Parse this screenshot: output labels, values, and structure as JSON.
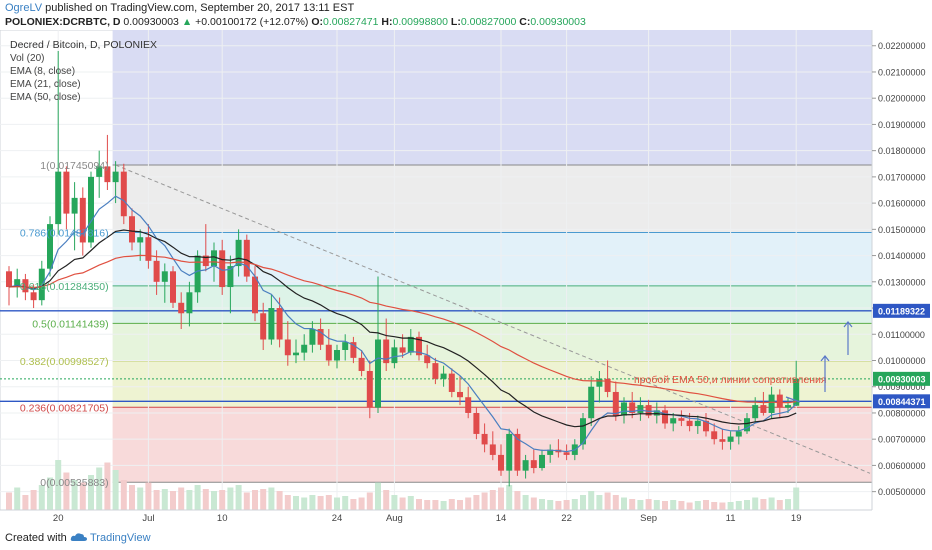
{
  "header": {
    "author": "OgreLV",
    "published": " published on TradingView.com, September 20, 2017 13:11 EST",
    "symbol": "POLONIEX:DCRBTC, D",
    "last": "0.00930003",
    "change": "+0.00100172 (+12.07%)",
    "o_label": "O:",
    "o": "0.00827471",
    "h_label": "H:",
    "h": "0.00998800",
    "l_label": "L:",
    "l": "0.00827000",
    "c_label": "C:",
    "c": "0.00930003"
  },
  "footer": {
    "created": "Created with",
    "brand": "TradingView"
  },
  "colors": {
    "up": "#26a65b",
    "down": "#e04b4b",
    "ema8": "#4a7fc0",
    "ema21": "#222222",
    "ema50": "#e05040",
    "axis_price": "#2e57c4"
  },
  "chart_data": {
    "type": "candlestick",
    "title": "Decred / Bitcoin, D, POLONIEX",
    "indicators": [
      "Vol (20)",
      "EMA (8, close)",
      "EMA (21, close)",
      "EMA (50, close)"
    ],
    "ylim": [
      0.0043,
      0.0226
    ],
    "y_ticks": [
      "0.02200000",
      "0.02100000",
      "0.02000000",
      "0.01900000",
      "0.01800000",
      "0.01700000",
      "0.01600000",
      "0.01500000",
      "0.01400000",
      "0.01300000",
      "0.01200000",
      "0.01100000",
      "0.01000000",
      "0.00900000",
      "0.00800000",
      "0.00700000",
      "0.00600000",
      "0.00500000"
    ],
    "x_ticks": [
      {
        "label": "20",
        "i": 6
      },
      {
        "label": "Jul",
        "i": 17
      },
      {
        "label": "10",
        "i": 26
      },
      {
        "label": "24",
        "i": 40
      },
      {
        "label": "Aug",
        "i": 47
      },
      {
        "label": "14",
        "i": 60
      },
      {
        "label": "22",
        "i": 68
      },
      {
        "label": "Sep",
        "i": 78
      },
      {
        "label": "11",
        "i": 88
      },
      {
        "label": "19",
        "i": 96
      }
    ],
    "fib": {
      "start_index": 13,
      "levels": [
        {
          "ratio": "1",
          "value": 0.01745094,
          "label": "1(0.01745094)"
        },
        {
          "ratio": "0.786",
          "value": 0.01487816,
          "label": "0.786(0.01487816)"
        },
        {
          "ratio": "0.618",
          "value": 0.0128435,
          "label": "0.618(0.01284350)"
        },
        {
          "ratio": "0.5",
          "value": 0.01141439,
          "label": "0.5(0.01141439)"
        },
        {
          "ratio": "0.382",
          "value": 0.00998527,
          "label": "0.382(0.00998527)"
        },
        {
          "ratio": "0.236",
          "value": 0.00821705,
          "label": "0.236(0.00821705)"
        },
        {
          "ratio": "0",
          "value": 0.00535883,
          "label": "0(0.00535883)"
        }
      ]
    },
    "price_labels": [
      {
        "value": 0.01189322,
        "label": "0.01189322",
        "color": "#2e57c4"
      },
      {
        "value": 0.00930003,
        "label": "0.00930003",
        "color": "#26a65b"
      },
      {
        "value": 0.00844371,
        "label": "0.00844371",
        "color": "#2e57c4"
      }
    ],
    "hlines": [
      0.01189322,
      0.00844371
    ],
    "last_price": 0.00930003,
    "annotation": "пробой EMA 50,и линии сопративления",
    "candles": [
      [
        0.0134,
        0.0136,
        0.0121,
        0.0128
      ],
      [
        0.0128,
        0.0135,
        0.0124,
        0.0131
      ],
      [
        0.0131,
        0.0133,
        0.0123,
        0.0126
      ],
      [
        0.0126,
        0.0129,
        0.012,
        0.0123
      ],
      [
        0.0123,
        0.0138,
        0.0121,
        0.0135
      ],
      [
        0.0135,
        0.0155,
        0.0132,
        0.0152
      ],
      [
        0.0152,
        0.0218,
        0.0148,
        0.0172
      ],
      [
        0.0172,
        0.0174,
        0.015,
        0.0156
      ],
      [
        0.0156,
        0.0168,
        0.0142,
        0.0162
      ],
      [
        0.0162,
        0.0166,
        0.014,
        0.0145
      ],
      [
        0.0145,
        0.0172,
        0.0143,
        0.017
      ],
      [
        0.017,
        0.018,
        0.0162,
        0.0174
      ],
      [
        0.0174,
        0.0186,
        0.0165,
        0.0168
      ],
      [
        0.0168,
        0.0176,
        0.016,
        0.0172
      ],
      [
        0.0172,
        0.0175,
        0.0152,
        0.0155
      ],
      [
        0.0155,
        0.0158,
        0.0142,
        0.0145
      ],
      [
        0.0145,
        0.015,
        0.0138,
        0.0147
      ],
      [
        0.0147,
        0.0152,
        0.0135,
        0.0138
      ],
      [
        0.0138,
        0.0142,
        0.0125,
        0.013
      ],
      [
        0.013,
        0.0137,
        0.0122,
        0.0134
      ],
      [
        0.0134,
        0.0136,
        0.012,
        0.0122
      ],
      [
        0.0122,
        0.0126,
        0.0112,
        0.0118
      ],
      [
        0.0118,
        0.013,
        0.0113,
        0.0126
      ],
      [
        0.0126,
        0.0142,
        0.0122,
        0.014
      ],
      [
        0.014,
        0.0152,
        0.0134,
        0.0136
      ],
      [
        0.0136,
        0.0145,
        0.013,
        0.0142
      ],
      [
        0.0142,
        0.0146,
        0.0125,
        0.0128
      ],
      [
        0.0128,
        0.014,
        0.0118,
        0.0136
      ],
      [
        0.0136,
        0.015,
        0.0132,
        0.0146
      ],
      [
        0.0146,
        0.0148,
        0.013,
        0.0132
      ],
      [
        0.0132,
        0.0136,
        0.0115,
        0.0118
      ],
      [
        0.0118,
        0.0122,
        0.0104,
        0.0108
      ],
      [
        0.0108,
        0.0125,
        0.0106,
        0.012
      ],
      [
        0.012,
        0.0124,
        0.0105,
        0.0108
      ],
      [
        0.0108,
        0.0115,
        0.0098,
        0.0102
      ],
      [
        0.0102,
        0.0108,
        0.0099,
        0.0103
      ],
      [
        0.0103,
        0.011,
        0.01,
        0.0106
      ],
      [
        0.0106,
        0.0115,
        0.0103,
        0.0112
      ],
      [
        0.0112,
        0.0116,
        0.0104,
        0.0106
      ],
      [
        0.0106,
        0.0112,
        0.0098,
        0.01
      ],
      [
        0.01,
        0.0106,
        0.0097,
        0.0104
      ],
      [
        0.0104,
        0.011,
        0.01,
        0.0107
      ],
      [
        0.0107,
        0.0109,
        0.0099,
        0.0101
      ],
      [
        0.0101,
        0.0104,
        0.0094,
        0.0096
      ],
      [
        0.0096,
        0.01,
        0.0078,
        0.0082
      ],
      [
        0.0082,
        0.0132,
        0.008,
        0.0108
      ],
      [
        0.0108,
        0.0116,
        0.0096,
        0.0099
      ],
      [
        0.0099,
        0.0108,
        0.0097,
        0.0105
      ],
      [
        0.0105,
        0.011,
        0.0101,
        0.0103
      ],
      [
        0.0103,
        0.0112,
        0.0102,
        0.0109
      ],
      [
        0.0109,
        0.0111,
        0.01,
        0.0102
      ],
      [
        0.0102,
        0.0106,
        0.0097,
        0.0099
      ],
      [
        0.0099,
        0.0101,
        0.0091,
        0.0093
      ],
      [
        0.0093,
        0.0098,
        0.009,
        0.0095
      ],
      [
        0.0095,
        0.0097,
        0.0086,
        0.0088
      ],
      [
        0.0088,
        0.0094,
        0.0083,
        0.0086
      ],
      [
        0.0086,
        0.009,
        0.0078,
        0.008
      ],
      [
        0.008,
        0.0082,
        0.007,
        0.0072
      ],
      [
        0.0072,
        0.0076,
        0.0065,
        0.0068
      ],
      [
        0.0068,
        0.0073,
        0.0062,
        0.0064
      ],
      [
        0.0064,
        0.0068,
        0.0056,
        0.0058
      ],
      [
        0.0058,
        0.0074,
        0.0052,
        0.0072
      ],
      [
        0.0072,
        0.0074,
        0.0056,
        0.0058
      ],
      [
        0.0058,
        0.0064,
        0.0055,
        0.0062
      ],
      [
        0.0062,
        0.0066,
        0.0057,
        0.0059
      ],
      [
        0.0059,
        0.0066,
        0.0058,
        0.0064
      ],
      [
        0.0064,
        0.0068,
        0.0061,
        0.0066
      ],
      [
        0.0066,
        0.007,
        0.0063,
        0.0065
      ],
      [
        0.0065,
        0.0068,
        0.0062,
        0.0064
      ],
      [
        0.0064,
        0.007,
        0.0062,
        0.0068
      ],
      [
        0.0068,
        0.008,
        0.0066,
        0.0078
      ],
      [
        0.0078,
        0.0094,
        0.0075,
        0.009
      ],
      [
        0.009,
        0.0096,
        0.0084,
        0.0093
      ],
      [
        0.0093,
        0.01,
        0.0086,
        0.0088
      ],
      [
        0.0088,
        0.0092,
        0.0077,
        0.0079
      ],
      [
        0.0079,
        0.0086,
        0.0076,
        0.0084
      ],
      [
        0.0084,
        0.0088,
        0.0078,
        0.008
      ],
      [
        0.008,
        0.0086,
        0.0077,
        0.0083
      ],
      [
        0.0083,
        0.0085,
        0.0078,
        0.0079
      ],
      [
        0.0079,
        0.0084,
        0.0076,
        0.0081
      ],
      [
        0.0081,
        0.0083,
        0.0074,
        0.0076
      ],
      [
        0.0076,
        0.008,
        0.0073,
        0.0078
      ],
      [
        0.0078,
        0.0081,
        0.0075,
        0.0077
      ],
      [
        0.0077,
        0.008,
        0.0073,
        0.0075
      ],
      [
        0.0075,
        0.0079,
        0.0072,
        0.0077
      ],
      [
        0.0077,
        0.008,
        0.0071,
        0.0073
      ],
      [
        0.0073,
        0.0076,
        0.0068,
        0.007
      ],
      [
        0.007,
        0.0074,
        0.0066,
        0.0069
      ],
      [
        0.0069,
        0.0073,
        0.0066,
        0.0071
      ],
      [
        0.0071,
        0.0075,
        0.0068,
        0.0073
      ],
      [
        0.0073,
        0.008,
        0.0072,
        0.0078
      ],
      [
        0.0078,
        0.0086,
        0.0076,
        0.0083
      ],
      [
        0.0083,
        0.0088,
        0.0079,
        0.008
      ],
      [
        0.008,
        0.009,
        0.0078,
        0.0087
      ],
      [
        0.0087,
        0.0089,
        0.0078,
        0.0082
      ],
      [
        0.0082,
        0.0086,
        0.008,
        0.0083
      ],
      [
        0.00827471,
        0.009988,
        0.00827,
        0.00930003
      ]
    ],
    "volume": [
      0.35,
      0.45,
      0.3,
      0.4,
      0.5,
      0.65,
      1.0,
      0.75,
      0.6,
      0.55,
      0.7,
      0.85,
      0.95,
      0.8,
      0.6,
      0.5,
      0.45,
      0.55,
      0.4,
      0.42,
      0.38,
      0.45,
      0.4,
      0.5,
      0.42,
      0.38,
      0.4,
      0.45,
      0.5,
      0.35,
      0.4,
      0.42,
      0.45,
      0.38,
      0.3,
      0.28,
      0.25,
      0.3,
      0.28,
      0.3,
      0.25,
      0.28,
      0.22,
      0.25,
      0.35,
      0.55,
      0.4,
      0.3,
      0.25,
      0.28,
      0.22,
      0.2,
      0.2,
      0.18,
      0.22,
      0.2,
      0.25,
      0.3,
      0.35,
      0.4,
      0.45,
      0.5,
      0.38,
      0.3,
      0.25,
      0.22,
      0.2,
      0.18,
      0.2,
      0.22,
      0.3,
      0.38,
      0.3,
      0.35,
      0.3,
      0.25,
      0.22,
      0.2,
      0.22,
      0.2,
      0.18,
      0.2,
      0.18,
      0.15,
      0.18,
      0.2,
      0.16,
      0.15,
      0.16,
      0.18,
      0.2,
      0.25,
      0.22,
      0.25,
      0.2,
      0.22,
      0.45
    ]
  }
}
